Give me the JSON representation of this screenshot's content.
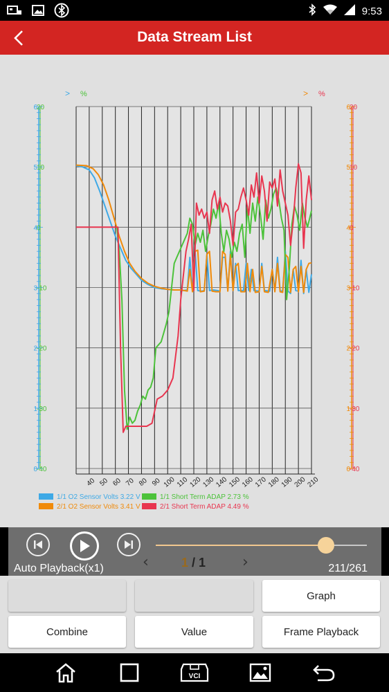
{
  "status_bar": {
    "time": "9:53",
    "left_icons": [
      "vci-icon",
      "image-icon",
      "bluetooth-circle-icon"
    ],
    "right_icons": [
      "bluetooth-icon",
      "wifi-icon",
      "cellular-icon"
    ]
  },
  "header": {
    "title": "Data Stream List",
    "back_icon": "chevron-left-icon"
  },
  "chart": {
    "left_axis_marker": ">",
    "left_axis_marker2": "%",
    "right_axis_marker": ">",
    "right_axis_marker2": "%",
    "colors": {
      "blue": "#3ea9e6",
      "orange": "#f08a0a",
      "green": "#4cc23a",
      "red": "#e8354f"
    }
  },
  "chart_data": {
    "type": "line",
    "x_ticks": [
      "40",
      "50",
      "60",
      "70",
      "80",
      "90",
      "100",
      "110",
      "120",
      "130",
      "140",
      "150",
      "160",
      "170",
      "180",
      "190",
      "200",
      "210"
    ],
    "left_tick_labels": [
      {
        "blue": "6",
        "green": "20"
      },
      {
        "blue": "5",
        "green": "10"
      },
      {
        "blue": "4",
        "green": "0"
      },
      {
        "blue": "3",
        "green": "-10"
      },
      {
        "blue": "2",
        "green": "-20"
      },
      {
        "blue": "1",
        "green": "-30"
      },
      {
        "blue": "0",
        "green": "-40"
      }
    ],
    "right_tick_labels": [
      {
        "orange": "6",
        "red": "20"
      },
      {
        "orange": "5",
        "red": "10"
      },
      {
        "orange": "4",
        "red": "0"
      },
      {
        "orange": "3",
        "red": "-10"
      },
      {
        "orange": "2",
        "red": "-20"
      },
      {
        "orange": "1",
        "red": "-30"
      },
      {
        "orange": "0",
        "red": "-40"
      }
    ],
    "x_range": [
      30,
      210
    ],
    "series": [
      {
        "name": "1/1 O2 Sensor Volts 3.22 V",
        "color": "#3ea9e6",
        "axis": "left-volts",
        "points": [
          [
            30,
            5.02
          ],
          [
            35,
            5.0
          ],
          [
            40,
            4.95
          ],
          [
            44,
            4.82
          ],
          [
            48,
            4.6
          ],
          [
            52,
            4.35
          ],
          [
            56,
            4.1
          ],
          [
            60,
            3.85
          ],
          [
            64,
            3.65
          ],
          [
            68,
            3.45
          ],
          [
            72,
            3.32
          ],
          [
            76,
            3.22
          ],
          [
            80,
            3.12
          ],
          [
            85,
            3.05
          ],
          [
            90,
            3.0
          ],
          [
            95,
            2.98
          ],
          [
            100,
            2.97
          ],
          [
            105,
            2.96
          ],
          [
            110,
            2.96
          ],
          [
            112,
            2.95
          ],
          [
            115,
            2.96
          ],
          [
            117,
            3.5
          ],
          [
            119,
            2.95
          ],
          [
            121,
            3.6
          ],
          [
            123,
            2.95
          ],
          [
            126,
            2.94
          ],
          [
            128,
            2.95
          ],
          [
            130,
            3.55
          ],
          [
            132,
            2.95
          ],
          [
            135,
            2.96
          ],
          [
            138,
            2.95
          ],
          [
            140,
            2.94
          ],
          [
            142,
            3.5
          ],
          [
            144,
            3.5
          ],
          [
            146,
            2.95
          ],
          [
            148,
            3.6
          ],
          [
            150,
            2.95
          ],
          [
            152,
            3.4
          ],
          [
            154,
            2.95
          ],
          [
            158,
            2.95
          ],
          [
            160,
            3.4
          ],
          [
            162,
            2.95
          ],
          [
            164,
            3.3
          ],
          [
            166,
            2.95
          ],
          [
            170,
            2.94
          ],
          [
            172,
            3.4
          ],
          [
            174,
            2.95
          ],
          [
            178,
            2.94
          ],
          [
            180,
            3.3
          ],
          [
            182,
            2.95
          ],
          [
            184,
            3.5
          ],
          [
            186,
            2.95
          ],
          [
            188,
            2.94
          ],
          [
            190,
            3.6
          ],
          [
            192,
            2.94
          ],
          [
            194,
            2.9
          ],
          [
            196,
            3.3
          ],
          [
            198,
            2.95
          ],
          [
            200,
            2.94
          ],
          [
            202,
            3.45
          ],
          [
            204,
            2.9
          ],
          [
            206,
            3.3
          ],
          [
            208,
            2.92
          ],
          [
            210,
            3.22
          ]
        ]
      },
      {
        "name": "2/1 O2 Sensor Volts 3.41 V",
        "color": "#f08a0a",
        "axis": "right-volts",
        "points": [
          [
            30,
            5.03
          ],
          [
            38,
            5.02
          ],
          [
            43,
            4.97
          ],
          [
            47,
            4.87
          ],
          [
            51,
            4.7
          ],
          [
            55,
            4.45
          ],
          [
            59,
            4.15
          ],
          [
            63,
            3.85
          ],
          [
            67,
            3.6
          ],
          [
            71,
            3.4
          ],
          [
            75,
            3.27
          ],
          [
            80,
            3.15
          ],
          [
            85,
            3.07
          ],
          [
            90,
            3.02
          ],
          [
            95,
            2.99
          ],
          [
            100,
            2.97
          ],
          [
            105,
            2.96
          ],
          [
            110,
            2.96
          ],
          [
            115,
            2.94
          ],
          [
            117,
            3.3
          ],
          [
            119,
            2.93
          ],
          [
            121,
            3.6
          ],
          [
            123,
            3.62
          ],
          [
            125,
            2.93
          ],
          [
            128,
            2.94
          ],
          [
            130,
            3.55
          ],
          [
            132,
            3.6
          ],
          [
            134,
            2.94
          ],
          [
            137,
            2.93
          ],
          [
            140,
            2.93
          ],
          [
            142,
            3.6
          ],
          [
            144,
            3.55
          ],
          [
            146,
            2.94
          ],
          [
            148,
            3.55
          ],
          [
            150,
            2.95
          ],
          [
            152,
            3.35
          ],
          [
            154,
            3.4
          ],
          [
            156,
            2.93
          ],
          [
            159,
            2.93
          ],
          [
            161,
            3.4
          ],
          [
            163,
            2.93
          ],
          [
            165,
            3.3
          ],
          [
            167,
            2.92
          ],
          [
            170,
            2.93
          ],
          [
            172,
            3.35
          ],
          [
            174,
            2.93
          ],
          [
            177,
            2.92
          ],
          [
            180,
            3.3
          ],
          [
            182,
            2.93
          ],
          [
            184,
            3.4
          ],
          [
            186,
            2.93
          ],
          [
            188,
            2.92
          ],
          [
            190,
            3.55
          ],
          [
            192,
            3.5
          ],
          [
            194,
            2.92
          ],
          [
            196,
            3.3
          ],
          [
            198,
            3.35
          ],
          [
            200,
            2.93
          ],
          [
            202,
            3.35
          ],
          [
            204,
            2.92
          ],
          [
            206,
            3.3
          ],
          [
            208,
            3.4
          ],
          [
            210,
            3.41
          ]
        ]
      },
      {
        "name": "1/1 Short Term ADAP 2.73 %",
        "color": "#4cc23a",
        "axis": "left-percent",
        "points": [
          [
            61,
            0.0
          ],
          [
            63,
            -4.0
          ],
          [
            65,
            -12.0
          ],
          [
            67,
            -27.0
          ],
          [
            69,
            -33.5
          ],
          [
            71,
            -31.5
          ],
          [
            73,
            -32.5
          ],
          [
            75,
            -32.0
          ],
          [
            77,
            -30.5
          ],
          [
            79,
            -29.5
          ],
          [
            81,
            -28.0
          ],
          [
            83,
            -28.5
          ],
          [
            85,
            -27.0
          ],
          [
            87,
            -26.5
          ],
          [
            89,
            -25.0
          ],
          [
            91,
            -20.0
          ],
          [
            93,
            -19.5
          ],
          [
            95,
            -19.0
          ],
          [
            97,
            -17.5
          ],
          [
            99,
            -16.0
          ],
          [
            101,
            -14.0
          ],
          [
            103,
            -10.0
          ],
          [
            105,
            -6.0
          ],
          [
            107,
            -5.0
          ],
          [
            109,
            -4.0
          ],
          [
            111,
            -3.0
          ],
          [
            113,
            -2.0
          ],
          [
            115,
            -1.0
          ],
          [
            117,
            1.5
          ],
          [
            119,
            0.5
          ],
          [
            121,
            -3.0
          ],
          [
            123,
            -1.0
          ],
          [
            125,
            -2.5
          ],
          [
            127,
            -0.5
          ],
          [
            129,
            -4.0
          ],
          [
            131,
            -1.5
          ],
          [
            133,
            0.5
          ],
          [
            135,
            3.0
          ],
          [
            137,
            1.5
          ],
          [
            139,
            4.0
          ],
          [
            141,
            -1.0
          ],
          [
            143,
            -4.0
          ],
          [
            145,
            -0.5
          ],
          [
            147,
            -2.0
          ],
          [
            149,
            -5.0
          ],
          [
            151,
            -2.5
          ],
          [
            153,
            -4.0
          ],
          [
            155,
            -1.0
          ],
          [
            157,
            0.5
          ],
          [
            159,
            -5.0
          ],
          [
            161,
            3.5
          ],
          [
            163,
            -1.0
          ],
          [
            165,
            4.0
          ],
          [
            167,
            1.0
          ],
          [
            169,
            5.0
          ],
          [
            171,
            2.0
          ],
          [
            173,
            -2.0
          ],
          [
            175,
            4.5
          ],
          [
            177,
            1.5
          ],
          [
            179,
            3.0
          ],
          [
            181,
            5.5
          ],
          [
            183,
            6.5
          ],
          [
            185,
            4.5
          ],
          [
            187,
            1.5
          ],
          [
            189,
            -0.5
          ],
          [
            191,
            -12.0
          ],
          [
            193,
            -7.0
          ],
          [
            195,
            0.5
          ],
          [
            197,
            3.5
          ],
          [
            199,
            2.0
          ],
          [
            201,
            -0.5
          ],
          [
            203,
            4.0
          ],
          [
            205,
            1.5
          ],
          [
            207,
            0.0
          ],
          [
            210,
            2.73
          ]
        ]
      },
      {
        "name": "2/1 Short Term ADAP 4.49 %",
        "color": "#e8354f",
        "axis": "right-percent",
        "points": [
          [
            30,
            0.0
          ],
          [
            62,
            0.0
          ],
          [
            64,
            -20.0
          ],
          [
            66,
            -34.0
          ],
          [
            68,
            -33.0
          ],
          [
            72,
            -33.0
          ],
          [
            76,
            -33.0
          ],
          [
            80,
            -33.0
          ],
          [
            84,
            -33.0
          ],
          [
            88,
            -32.5
          ],
          [
            92,
            -28.5
          ],
          [
            96,
            -28.0
          ],
          [
            100,
            -27.0
          ],
          [
            104,
            -25.0
          ],
          [
            108,
            -18.0
          ],
          [
            110,
            -12.0
          ],
          [
            112,
            -8.0
          ],
          [
            114,
            -4.0
          ],
          [
            116,
            -2.0
          ],
          [
            118,
            0.5
          ],
          [
            120,
            -10.5
          ],
          [
            122,
            4.0
          ],
          [
            124,
            2.0
          ],
          [
            126,
            3.0
          ],
          [
            128,
            1.5
          ],
          [
            130,
            2.5
          ],
          [
            132,
            -1.0
          ],
          [
            134,
            4.5
          ],
          [
            136,
            6.0
          ],
          [
            138,
            3.0
          ],
          [
            140,
            5.0
          ],
          [
            142,
            2.5
          ],
          [
            144,
            4.0
          ],
          [
            146,
            3.5
          ],
          [
            148,
            1.0
          ],
          [
            150,
            -3.0
          ],
          [
            152,
            2.5
          ],
          [
            154,
            3.0
          ],
          [
            156,
            5.0
          ],
          [
            158,
            6.5
          ],
          [
            160,
            4.5
          ],
          [
            162,
            2.0
          ],
          [
            164,
            7.0
          ],
          [
            166,
            5.0
          ],
          [
            168,
            9.0
          ],
          [
            170,
            4.0
          ],
          [
            172,
            8.5
          ],
          [
            174,
            6.0
          ],
          [
            176,
            1.0
          ],
          [
            178,
            7.5
          ],
          [
            180,
            6.5
          ],
          [
            182,
            8.0
          ],
          [
            184,
            3.5
          ],
          [
            186,
            9.5
          ],
          [
            188,
            6.0
          ],
          [
            190,
            4.0
          ],
          [
            192,
            2.0
          ],
          [
            194,
            -3.0
          ],
          [
            196,
            1.0
          ],
          [
            198,
            6.5
          ],
          [
            200,
            10.5
          ],
          [
            202,
            9.0
          ],
          [
            204,
            -3.5
          ],
          [
            206,
            4.5
          ],
          [
            208,
            8.5
          ],
          [
            210,
            4.49
          ]
        ]
      }
    ]
  },
  "legend": [
    {
      "label": "1/1 O2 Sensor Volts 3.22 V",
      "color": "#3ea9e6"
    },
    {
      "label": "1/1 Short Term ADAP 2.73 %",
      "color": "#4cc23a"
    },
    {
      "label": "2/1 O2 Sensor Volts 3.41 V",
      "color": "#f08a0a"
    },
    {
      "label": "2/1 Short Term ADAP 4.49 %",
      "color": "#e8354f"
    }
  ],
  "playback": {
    "mode_label": "Auto Playback(x1)",
    "frame_counter": "211/261",
    "progress": 0.808,
    "page_current": "1",
    "page_sep": " / ",
    "page_total": "1",
    "prev_icon": "skip-previous-icon",
    "play_icon": "play-icon",
    "next_icon": "skip-next-icon"
  },
  "buttons": {
    "graph": "Graph",
    "combine": "Combine",
    "value": "Value",
    "frame_playback": "Frame Playback"
  },
  "navbar": {
    "icons": [
      "home-icon",
      "recent-apps-icon",
      "vci-icon",
      "screenshot-icon",
      "back-icon"
    ],
    "vci_label": "VCI"
  }
}
